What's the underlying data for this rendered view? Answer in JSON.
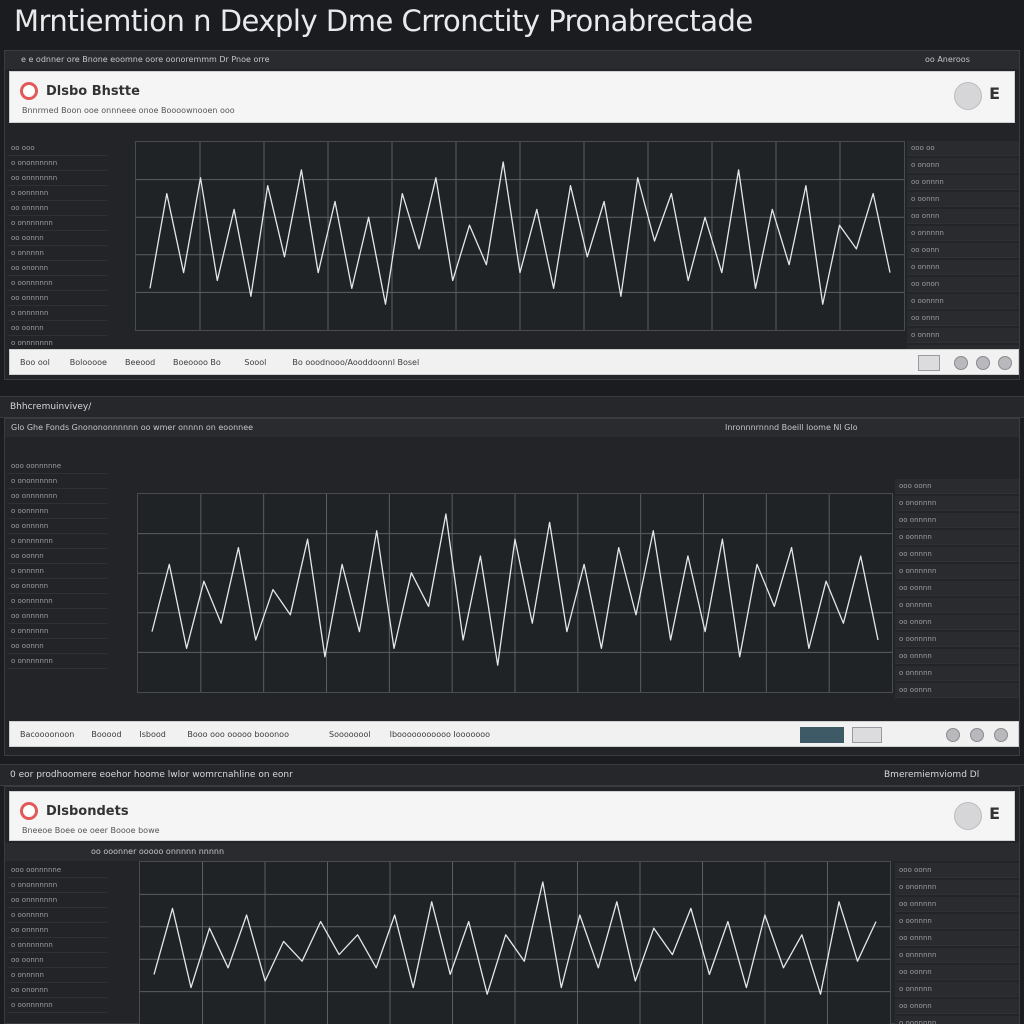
{
  "title": "Mrntiemtion n Dexply Dme Crronctity Pronabrectade",
  "strips": [
    {
      "left": "Bhhcremuinvivey/",
      "right": ""
    },
    {
      "left": "0 eor prodhoomere eoehor hoome lwlor womrcnahline on eonr",
      "right": "Bmeremiemviomd Dl"
    }
  ],
  "panels": [
    {
      "topbar_left": "e e odnner ore Bnone eoomne oore oonoremmm Dr Pnoe orre",
      "topbar_right": "oo Aneroos",
      "app_name": "Dlsbo Bhstte",
      "app_sub": "Bnnrmed Boon ooe onnneee onoe  Boooownooen ooo",
      "menu_letter": "E",
      "left_items": [
        "oo ooo",
        "o ononnnnnn",
        "oo onnnnnnn",
        "o oonnnnn",
        "oo onnnnn",
        "o onnnnnnn",
        "oo oonnn",
        "o onnnnn",
        "oo ononnn",
        "o oonnnnnn",
        "oo onnnnn",
        "o onnnnnn",
        "oo oonnn",
        "o onnnnnnn"
      ],
      "right_items": [
        "ooo oo",
        "o ononn",
        "oo onnnn",
        "o oonnn",
        "oo onnn",
        "o onnnnn",
        "oo oonn",
        "o onnnn",
        "oo onon",
        "o oonnnn",
        "oo onnn",
        "o onnnn",
        "oo oonn"
      ],
      "footer_items": [
        "Boo ool",
        "Bolooooe",
        "Beeood",
        "Boeoooo  Bo",
        "Soool",
        "Bo ooodnooo/Aooddoonnl Bosel"
      ],
      "series": [
        0.2,
        0.8,
        0.3,
        0.9,
        0.25,
        0.7,
        0.15,
        0.85,
        0.4,
        0.95,
        0.3,
        0.75,
        0.2,
        0.65,
        0.1,
        0.8,
        0.45,
        0.9,
        0.25,
        0.6,
        0.35,
        1.0,
        0.3,
        0.7,
        0.2,
        0.85,
        0.4,
        0.75,
        0.15,
        0.9,
        0.5,
        0.8,
        0.25,
        0.65,
        0.3,
        0.95,
        0.2,
        0.7,
        0.35,
        0.85,
        0.1,
        0.6,
        0.45,
        0.8,
        0.3
      ]
    },
    {
      "topbar_left": "Glo Ghe Fonds Gnonononnnnnn oo wmer onnnn on eoonnee",
      "topbar_right": "Inronnnrnnnd Boeill loome Nl Glo",
      "app_name": "",
      "app_sub": "",
      "menu_letter": "",
      "left_items": [
        "ooo oonnnnne",
        "o ononnnnnn",
        "oo onnnnnnn",
        "o oonnnnn",
        "oo onnnnn",
        "o onnnnnnn",
        "oo oonnn",
        "o onnnnn",
        "oo ononnn",
        "o oonnnnnn",
        "oo onnnnn",
        "o onnnnnn",
        "oo oonnn",
        "o onnnnnnn"
      ],
      "right_items": [
        "ooo oonn",
        "o ononnnn",
        "oo onnnnn",
        "o oonnnn",
        "oo onnnn",
        "o onnnnnn",
        "oo oonnn",
        "o onnnnn",
        "oo ononn",
        "o oonnnnn",
        "oo onnnn",
        "o onnnnn",
        "oo oonnn"
      ],
      "footer_items": [
        "Bacoooonoon",
        "Booood",
        "Isbood",
        "Booo ooo  ooooo  booonoo",
        "Soooooool",
        "Ibooooooooooo   Iooooooo"
      ],
      "series": [
        0.3,
        0.7,
        0.2,
        0.6,
        0.35,
        0.8,
        0.25,
        0.55,
        0.4,
        0.85,
        0.15,
        0.7,
        0.3,
        0.9,
        0.2,
        0.65,
        0.45,
        1.0,
        0.25,
        0.75,
        0.1,
        0.85,
        0.35,
        0.95,
        0.3,
        0.7,
        0.2,
        0.8,
        0.4,
        0.9,
        0.25,
        0.75,
        0.3,
        0.85,
        0.15,
        0.7,
        0.45,
        0.8,
        0.2,
        0.6,
        0.35,
        0.75,
        0.25
      ]
    },
    {
      "topbar_left": "oo ooonner ooooo onnnnn nnnnn",
      "topbar_right": "",
      "app_name": "Dlsbondets",
      "app_sub": "Bneeoe Boee oe oeer Boooe bowe",
      "menu_letter": "E",
      "left_items": [
        "ooo oonnnnne",
        "o ononnnnnn",
        "oo onnnnnnn",
        "o oonnnnn",
        "oo onnnnn",
        "o onnnnnnn",
        "oo oonnn",
        "o onnnnn",
        "oo ononnn",
        "o oonnnnnn"
      ],
      "right_items": [
        "ooo oonn",
        "o ononnnn",
        "oo onnnnn",
        "o oonnnn",
        "oo onnnn",
        "o onnnnnn",
        "oo oonnn",
        "o onnnnn",
        "oo ononn",
        "o oonnnnn"
      ],
      "footer_items": [],
      "series": [
        0.3,
        0.8,
        0.2,
        0.65,
        0.35,
        0.75,
        0.25,
        0.55,
        0.4,
        0.7,
        0.45,
        0.6,
        0.35,
        0.75,
        0.2,
        0.85,
        0.3,
        0.7,
        0.15,
        0.6,
        0.4,
        1.0,
        0.2,
        0.75,
        0.35,
        0.85,
        0.25,
        0.65,
        0.45,
        0.8,
        0.3,
        0.7,
        0.2,
        0.75,
        0.35,
        0.6,
        0.15,
        0.85,
        0.4,
        0.7
      ]
    }
  ],
  "colors": {
    "line": "#e6e6e6",
    "grid": "#5b5e63",
    "accent": "#e05a59"
  }
}
